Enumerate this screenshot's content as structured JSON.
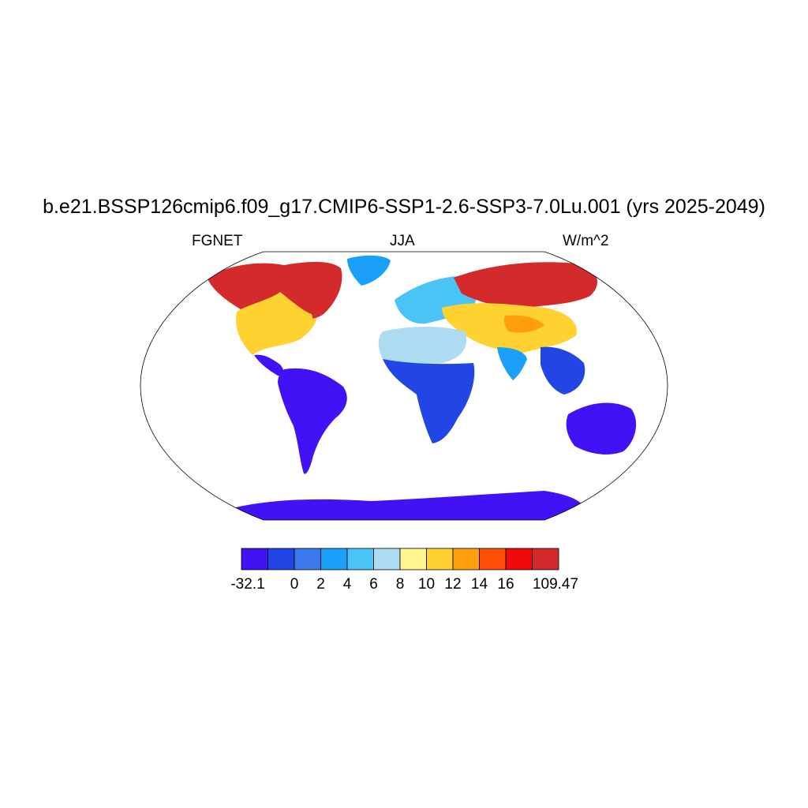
{
  "title": "b.e21.BSSP126cmip6.f09_g17.CMIP6-SSP1-2.6-SSP3-7.0Lu.001 (yrs 2025-2049)",
  "left_string": "FGNET",
  "center_string": "JJA",
  "right_string": "W/m^2",
  "colorbar": {
    "colors": [
      "#4211f5",
      "#2245e6",
      "#3a7aec",
      "#1a9ffb",
      "#4ac3f7",
      "#acdcf2",
      "#fff68f",
      "#ffd232",
      "#ff9e0a",
      "#ff4d0a",
      "#f00a0a",
      "#d42a2c"
    ],
    "labels": [
      "-32.1",
      "0",
      "2",
      "4",
      "6",
      "8",
      "10",
      "12",
      "14",
      "16",
      "109.47"
    ]
  },
  "map_legend": {
    "projection": "Robinson",
    "regions": [
      {
        "region": "north-america-north",
        "color": "#d42a2c"
      },
      {
        "region": "north-america-mid",
        "color": "#ffd232"
      },
      {
        "region": "eurasia-north",
        "color": "#d42a2c"
      },
      {
        "region": "europe",
        "color": "#4ac3f7"
      },
      {
        "region": "sahara",
        "color": "#acdcf2"
      },
      {
        "region": "africa-south",
        "color": "#4211f5"
      },
      {
        "region": "south-america",
        "color": "#4211f5"
      },
      {
        "region": "australia",
        "color": "#4211f5"
      },
      {
        "region": "antarctica",
        "color": "#4211f5"
      },
      {
        "region": "greenland",
        "color": "#1a9ffb"
      }
    ]
  }
}
